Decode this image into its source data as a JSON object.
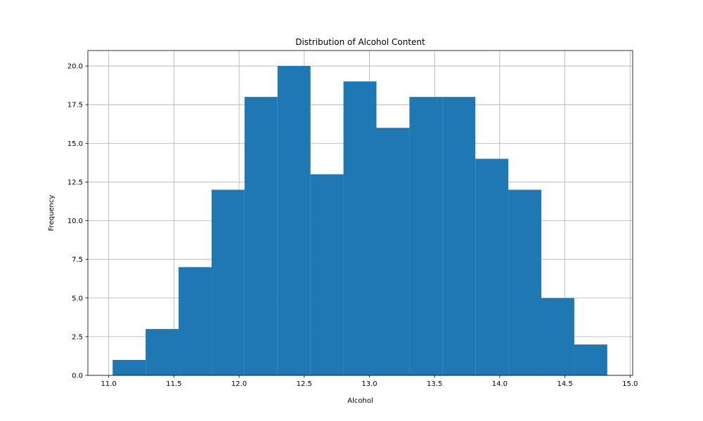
{
  "chart_data": {
    "type": "bar",
    "title": "Distribution of Alcohol Content",
    "xlabel": "Alcohol",
    "ylabel": "Frequency",
    "bins": [
      {
        "x0": 11.03,
        "x1": 11.283,
        "count": 1
      },
      {
        "x0": 11.283,
        "x1": 11.536,
        "count": 3
      },
      {
        "x0": 11.536,
        "x1": 11.789,
        "count": 7
      },
      {
        "x0": 11.789,
        "x1": 12.042,
        "count": 12
      },
      {
        "x0": 12.042,
        "x1": 12.295,
        "count": 18
      },
      {
        "x0": 12.295,
        "x1": 12.548,
        "count": 20
      },
      {
        "x0": 12.548,
        "x1": 12.801,
        "count": 13
      },
      {
        "x0": 12.801,
        "x1": 13.054,
        "count": 19
      },
      {
        "x0": 13.054,
        "x1": 13.307,
        "count": 16
      },
      {
        "x0": 13.307,
        "x1": 13.56,
        "count": 18
      },
      {
        "x0": 13.56,
        "x1": 13.813,
        "count": 18
      },
      {
        "x0": 13.813,
        "x1": 14.066,
        "count": 14
      },
      {
        "x0": 14.066,
        "x1": 14.319,
        "count": 12
      },
      {
        "x0": 14.319,
        "x1": 14.572,
        "count": 5
      },
      {
        "x0": 14.572,
        "x1": 14.825,
        "count": 2
      }
    ],
    "xlim": [
      10.84,
      15.02
    ],
    "ylim": [
      0,
      21
    ],
    "xticks": [
      11.0,
      11.5,
      12.0,
      12.5,
      13.0,
      13.5,
      14.0,
      14.5,
      15.0
    ],
    "xtick_labels": [
      "11.0",
      "11.5",
      "12.0",
      "12.5",
      "13.0",
      "13.5",
      "14.0",
      "14.5",
      "15.0"
    ],
    "yticks": [
      0,
      2.5,
      5,
      7.5,
      10,
      12.5,
      15,
      17.5,
      20
    ],
    "ytick_labels": [
      "0.0",
      "2.5",
      "5.0",
      "7.5",
      "10.0",
      "12.5",
      "15.0",
      "17.5",
      "20.0"
    ],
    "grid": true,
    "bar_color": "#1f77b4",
    "grid_color": "#b0b0b0"
  }
}
